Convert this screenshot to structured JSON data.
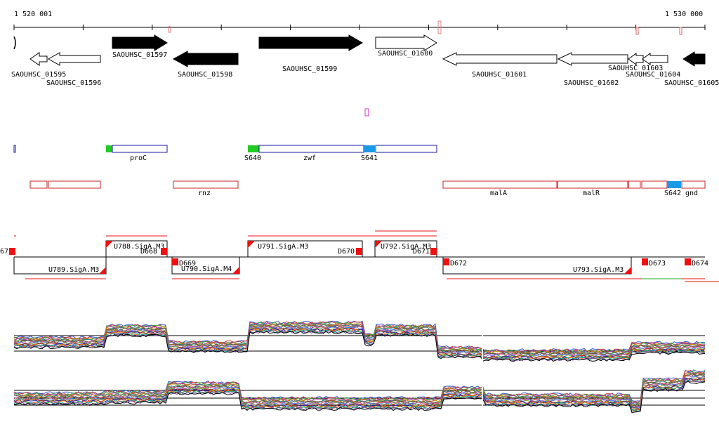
{
  "ruler": {
    "start_label": "1 520 001",
    "end_label": "1 530 000"
  },
  "colors": {
    "gene_forward_fill": "#000000",
    "gene_outline": "#000000",
    "operon_outline": "#1a1aa0",
    "operon_alt_outline": "#cc2222",
    "sigma_green": "#22cc22",
    "sigma_blue": "#1a9ae6",
    "segment_red": "#ee1111",
    "trace_black": "#000000"
  },
  "genes": [
    {
      "id": "g1595",
      "label": "SAOUHSC_01595",
      "strand": "-",
      "filled": false
    },
    {
      "id": "g1596",
      "label": "SAOUHSC_01596",
      "strand": "-",
      "filled": false
    },
    {
      "id": "g1597",
      "label": "SAOUHSC_01597",
      "strand": "+",
      "filled": true
    },
    {
      "id": "g1598",
      "label": "SAOUHSC_01598",
      "strand": "-",
      "filled": true
    },
    {
      "id": "g1599",
      "label": "SAOUHSC_01599",
      "strand": "+",
      "filled": true
    },
    {
      "id": "g1600",
      "label": "SAOUHSC_01600",
      "strand": "+",
      "filled": false
    },
    {
      "id": "g1601",
      "label": "SAOUHSC_01601",
      "strand": "-",
      "filled": false
    },
    {
      "id": "g1602",
      "label": "SAOUHSC_01602",
      "strand": "-",
      "filled": false
    },
    {
      "id": "g1603",
      "label": "SAOUHSC_01603",
      "strand": "-",
      "filled": false
    },
    {
      "id": "g1604",
      "label": "SAOUHSC_01604",
      "strand": "-",
      "filled": false
    },
    {
      "id": "g1605",
      "label": "SAOUHSC_01605",
      "strand": "-",
      "filled": true
    }
  ],
  "operons_forward": [
    {
      "id": "f1",
      "label": ""
    },
    {
      "id": "f2",
      "label": "proC",
      "left_site": ""
    },
    {
      "id": "f3",
      "label": "zwf",
      "left_site": "S640",
      "right_site": "S641"
    }
  ],
  "operons_reverse": [
    {
      "id": "r1",
      "label": ""
    },
    {
      "id": "r2",
      "label": ""
    },
    {
      "id": "r3",
      "label": "rnz"
    },
    {
      "id": "r4",
      "label": "malA"
    },
    {
      "id": "r5",
      "label": "malR"
    },
    {
      "id": "r6",
      "label": "gnd",
      "site": "S642"
    }
  ],
  "segments": {
    "upper": [
      {
        "id": "U788",
        "label": "U788.SigA.M3"
      },
      {
        "id": "U791",
        "label": "U791.SigA.M3"
      },
      {
        "id": "U792",
        "label": "U792.SigA.M3"
      }
    ],
    "lower": [
      {
        "id": "U789",
        "label": "U789.SigA.M3"
      },
      {
        "id": "U790",
        "label": "U790.SigA.M4"
      },
      {
        "id": "U793",
        "label": "U793.SigA.M3"
      }
    ],
    "down_markers": [
      {
        "id": "D667",
        "label": "67"
      },
      {
        "id": "D668",
        "label": "D668"
      },
      {
        "id": "D669",
        "label": "D669"
      },
      {
        "id": "D670",
        "label": "D670"
      },
      {
        "id": "D671",
        "label": "D671"
      },
      {
        "id": "D672",
        "label": "D672"
      },
      {
        "id": "D673",
        "label": "D673"
      },
      {
        "id": "D674",
        "label": "D674"
      }
    ]
  }
}
